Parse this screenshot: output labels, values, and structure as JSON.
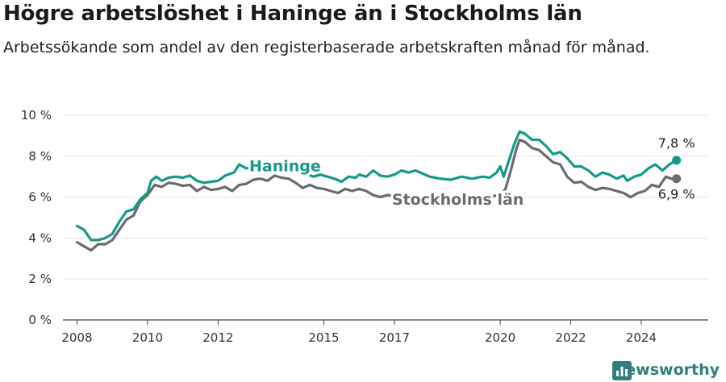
{
  "header": {
    "title": "Högre arbetslöshet i Haninge än i Stockholms län",
    "subtitle": "Arbetssökande som andel av den registerbaserade arbetskraften månad för månad."
  },
  "brand": {
    "name": "Newsworthy",
    "icon": "newsworthy-logo-icon",
    "color": "#2f7f7f"
  },
  "chart_data": {
    "type": "line",
    "title": "Högre arbetslöshet i Haninge än i Stockholms län",
    "subtitle": "Arbetssökande som andel av den registerbaserade arbetskraften månad för månad.",
    "xlabel": "",
    "ylabel": "",
    "xlim": [
      2007.6,
      2025.9
    ],
    "ylim": [
      0,
      10
    ],
    "y_ticks": [
      0,
      2,
      4,
      6,
      8,
      10
    ],
    "y_tick_labels": [
      "0 %",
      "2 %",
      "4 %",
      "6 %",
      "8 %",
      "10 %"
    ],
    "x_ticks": [
      2008,
      2010,
      2012,
      2015,
      2017,
      2020,
      2022,
      2024
    ],
    "x_tick_labels": [
      "2008",
      "2010",
      "2012",
      "2015",
      "2017",
      "2020",
      "2022",
      "2024"
    ],
    "grid": true,
    "legend": "direct labels",
    "series": [
      {
        "name": "Haninge",
        "color": "#159a8a",
        "end_label": "7,8 %",
        "points": [
          [
            2008.0,
            4.6
          ],
          [
            2008.2,
            4.4
          ],
          [
            2008.4,
            3.9
          ],
          [
            2008.6,
            3.9
          ],
          [
            2008.8,
            4.0
          ],
          [
            2009.0,
            4.2
          ],
          [
            2009.2,
            4.8
          ],
          [
            2009.4,
            5.3
          ],
          [
            2009.6,
            5.4
          ],
          [
            2009.8,
            5.9
          ],
          [
            2010.0,
            6.2
          ],
          [
            2010.1,
            6.8
          ],
          [
            2010.25,
            7.0
          ],
          [
            2010.4,
            6.8
          ],
          [
            2010.6,
            6.95
          ],
          [
            2010.8,
            7.0
          ],
          [
            2011.0,
            6.95
          ],
          [
            2011.2,
            7.05
          ],
          [
            2011.4,
            6.8
          ],
          [
            2011.6,
            6.7
          ],
          [
            2011.8,
            6.75
          ],
          [
            2012.0,
            6.8
          ],
          [
            2012.2,
            7.05
          ],
          [
            2012.45,
            7.2
          ],
          [
            2012.6,
            7.6
          ],
          [
            2012.8,
            7.4
          ],
          [
            2013.0,
            7.5
          ],
          [
            2013.4,
            7.4
          ],
          [
            2013.6,
            7.45
          ],
          [
            2014.0,
            7.3
          ],
          [
            2014.3,
            7.2
          ],
          [
            2014.5,
            7.15
          ],
          [
            2014.7,
            7.0
          ],
          [
            2014.9,
            7.1
          ],
          [
            2015.1,
            7.0
          ],
          [
            2015.3,
            6.9
          ],
          [
            2015.5,
            6.75
          ],
          [
            2015.7,
            7.0
          ],
          [
            2015.9,
            6.95
          ],
          [
            2016.0,
            7.1
          ],
          [
            2016.2,
            7.0
          ],
          [
            2016.4,
            7.3
          ],
          [
            2016.6,
            7.05
          ],
          [
            2016.8,
            7.0
          ],
          [
            2017.0,
            7.1
          ],
          [
            2017.2,
            7.3
          ],
          [
            2017.4,
            7.2
          ],
          [
            2017.6,
            7.3
          ],
          [
            2017.8,
            7.15
          ],
          [
            2018.0,
            7.0
          ],
          [
            2018.3,
            6.9
          ],
          [
            2018.6,
            6.85
          ],
          [
            2018.9,
            7.0
          ],
          [
            2019.2,
            6.9
          ],
          [
            2019.5,
            7.0
          ],
          [
            2019.7,
            6.95
          ],
          [
            2019.9,
            7.2
          ],
          [
            2020.0,
            7.5
          ],
          [
            2020.1,
            7.0
          ],
          [
            2020.25,
            7.8
          ],
          [
            2020.4,
            8.6
          ],
          [
            2020.55,
            9.2
          ],
          [
            2020.7,
            9.1
          ],
          [
            2020.9,
            8.8
          ],
          [
            2021.1,
            8.8
          ],
          [
            2021.3,
            8.5
          ],
          [
            2021.5,
            8.1
          ],
          [
            2021.7,
            8.2
          ],
          [
            2021.9,
            7.9
          ],
          [
            2022.1,
            7.5
          ],
          [
            2022.3,
            7.5
          ],
          [
            2022.5,
            7.3
          ],
          [
            2022.7,
            7.0
          ],
          [
            2022.9,
            7.2
          ],
          [
            2023.1,
            7.1
          ],
          [
            2023.3,
            6.9
          ],
          [
            2023.5,
            7.05
          ],
          [
            2023.6,
            6.8
          ],
          [
            2023.8,
            7.0
          ],
          [
            2024.0,
            7.1
          ],
          [
            2024.2,
            7.4
          ],
          [
            2024.4,
            7.6
          ],
          [
            2024.6,
            7.3
          ],
          [
            2024.8,
            7.6
          ],
          [
            2025.0,
            7.8
          ]
        ]
      },
      {
        "name": "Stockholms län",
        "color": "#6b6b70",
        "end_label": "6,9 %",
        "points": [
          [
            2008.0,
            3.8
          ],
          [
            2008.2,
            3.6
          ],
          [
            2008.4,
            3.4
          ],
          [
            2008.6,
            3.7
          ],
          [
            2008.8,
            3.7
          ],
          [
            2009.0,
            3.9
          ],
          [
            2009.2,
            4.4
          ],
          [
            2009.4,
            4.9
          ],
          [
            2009.6,
            5.1
          ],
          [
            2009.8,
            5.8
          ],
          [
            2010.0,
            6.1
          ],
          [
            2010.2,
            6.6
          ],
          [
            2010.4,
            6.5
          ],
          [
            2010.6,
            6.7
          ],
          [
            2010.8,
            6.65
          ],
          [
            2011.0,
            6.55
          ],
          [
            2011.2,
            6.6
          ],
          [
            2011.4,
            6.3
          ],
          [
            2011.6,
            6.5
          ],
          [
            2011.8,
            6.35
          ],
          [
            2012.0,
            6.4
          ],
          [
            2012.2,
            6.5
          ],
          [
            2012.4,
            6.3
          ],
          [
            2012.6,
            6.6
          ],
          [
            2012.8,
            6.65
          ],
          [
            2013.0,
            6.85
          ],
          [
            2013.2,
            6.9
          ],
          [
            2013.4,
            6.8
          ],
          [
            2013.6,
            7.05
          ],
          [
            2013.8,
            6.95
          ],
          [
            2014.0,
            6.9
          ],
          [
            2014.2,
            6.7
          ],
          [
            2014.4,
            6.45
          ],
          [
            2014.6,
            6.6
          ],
          [
            2014.8,
            6.45
          ],
          [
            2015.0,
            6.4
          ],
          [
            2015.2,
            6.3
          ],
          [
            2015.4,
            6.2
          ],
          [
            2015.6,
            6.4
          ],
          [
            2015.8,
            6.3
          ],
          [
            2016.0,
            6.4
          ],
          [
            2016.2,
            6.3
          ],
          [
            2016.4,
            6.1
          ],
          [
            2016.6,
            6.0
          ],
          [
            2016.8,
            6.1
          ],
          [
            2017.0,
            6.05
          ],
          [
            2017.2,
            6.1
          ],
          [
            2017.4,
            6.0
          ],
          [
            2017.6,
            6.1
          ],
          [
            2017.8,
            5.9
          ],
          [
            2018.0,
            5.95
          ],
          [
            2018.3,
            5.9
          ],
          [
            2018.6,
            5.8
          ],
          [
            2018.9,
            5.9
          ],
          [
            2019.2,
            5.9
          ],
          [
            2019.5,
            6.0
          ],
          [
            2019.8,
            6.05
          ],
          [
            2020.0,
            6.1
          ],
          [
            2020.15,
            6.4
          ],
          [
            2020.3,
            7.3
          ],
          [
            2020.45,
            8.3
          ],
          [
            2020.55,
            8.8
          ],
          [
            2020.7,
            8.7
          ],
          [
            2020.9,
            8.4
          ],
          [
            2021.1,
            8.3
          ],
          [
            2021.3,
            8.0
          ],
          [
            2021.5,
            7.7
          ],
          [
            2021.7,
            7.6
          ],
          [
            2021.9,
            7.0
          ],
          [
            2022.1,
            6.7
          ],
          [
            2022.3,
            6.75
          ],
          [
            2022.5,
            6.5
          ],
          [
            2022.7,
            6.35
          ],
          [
            2022.9,
            6.45
          ],
          [
            2023.1,
            6.4
          ],
          [
            2023.3,
            6.3
          ],
          [
            2023.5,
            6.2
          ],
          [
            2023.7,
            6.0
          ],
          [
            2023.9,
            6.2
          ],
          [
            2024.1,
            6.3
          ],
          [
            2024.3,
            6.6
          ],
          [
            2024.5,
            6.5
          ],
          [
            2024.7,
            7.0
          ],
          [
            2024.85,
            6.9
          ],
          [
            2025.0,
            6.9
          ]
        ]
      }
    ]
  }
}
